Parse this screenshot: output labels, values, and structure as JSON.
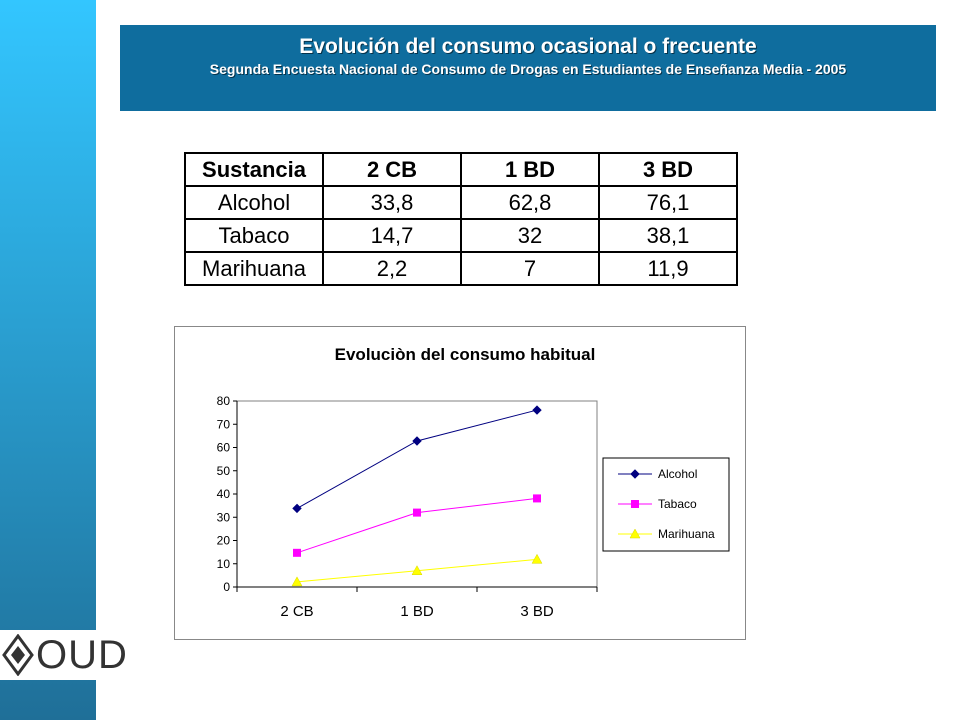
{
  "header": {
    "title": "Evolución del consumo ocasional o frecuente",
    "subtitle": "Segunda Encuesta Nacional de Consumo de Drogas en Estudiantes de Enseñanza Media - 2005"
  },
  "logo": {
    "text": "OUD",
    "icon": "logo-diamond-icon"
  },
  "table": {
    "headers": [
      "Sustancia",
      "2 CB",
      "1 BD",
      "3 BD"
    ],
    "rows": [
      [
        "Alcohol",
        "33,8",
        "62,8",
        "76,1"
      ],
      [
        "Tabaco",
        "14,7",
        "32",
        "38,1"
      ],
      [
        "Marihuana",
        "2,2",
        "7",
        "11,9"
      ]
    ]
  },
  "chart_data": {
    "type": "line",
    "title": "Evoluciòn del consumo habitual",
    "categories": [
      "2 CB",
      "1 BD",
      "3 BD"
    ],
    "ylim": [
      0,
      80
    ],
    "yticks": [
      0,
      10,
      20,
      30,
      40,
      50,
      60,
      70,
      80
    ],
    "grid": false,
    "legend": "right",
    "series": [
      {
        "name": "Alcohol",
        "values": [
          33.8,
          62.8,
          76.1
        ],
        "color": "#000080",
        "marker": "diamond"
      },
      {
        "name": "Tabaco",
        "values": [
          14.7,
          32,
          38.1
        ],
        "color": "#ff00ff",
        "marker": "square"
      },
      {
        "name": "Marihuana",
        "values": [
          2.2,
          7,
          11.9
        ],
        "color": "#ffff00",
        "marker": "triangle"
      }
    ]
  }
}
